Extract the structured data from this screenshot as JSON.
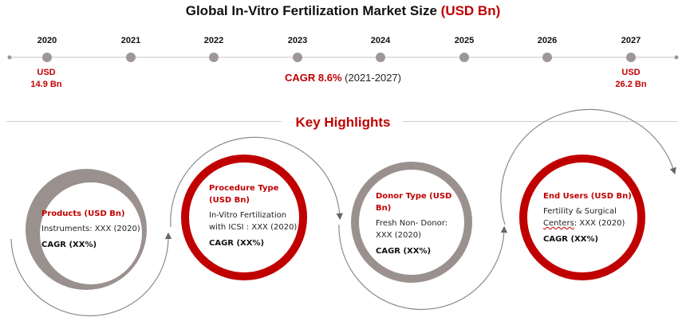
{
  "title": {
    "main": "Global In-Vitro Fertilization Market Size",
    "unit": "(USD Bn)"
  },
  "timeline": {
    "years": [
      "2020",
      "2021",
      "2022",
      "2023",
      "2024",
      "2025",
      "2026",
      "2027"
    ],
    "start_value": {
      "line1": "USD",
      "line2": "14.9 Bn"
    },
    "end_value": {
      "line1": "USD",
      "line2": "26.2 Bn"
    },
    "cagr": {
      "label": "CAGR 8.6%",
      "period": "(2021-2027)"
    }
  },
  "highlights": {
    "title": "Key Highlights",
    "cards": [
      {
        "heading": "Products (USD Bn)",
        "body": "Instruments: XXX (2020)",
        "cagr": "CAGR (XX%)"
      },
      {
        "heading": "Procedure Type (USD Bn)",
        "body": "In-Vitro Fertilization with ICSI : XXX (2020)",
        "cagr": "CAGR (XX%)"
      },
      {
        "heading": "Donor Type (USD Bn)",
        "body": "Fresh Non- Donor: XXX (2020)",
        "cagr": "CAGR (XX%)"
      },
      {
        "heading": "End Users (USD Bn)",
        "body_part1": "Fertility & Surgical",
        "body_part2": "Centers",
        "body_part3": ": XXX (2020)",
        "cagr": "CAGR (XX%)"
      }
    ]
  },
  "colors": {
    "accent": "#c00000",
    "grey_ring": "#9a918f",
    "timeline": "#9e9795"
  }
}
